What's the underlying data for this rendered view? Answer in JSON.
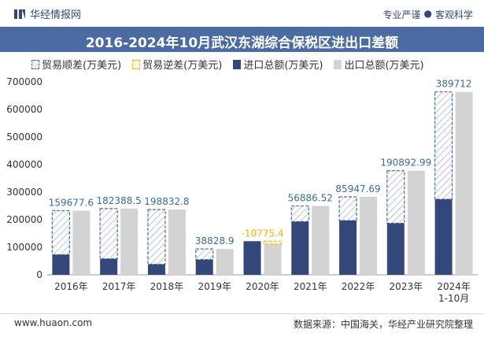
{
  "header": {
    "brand": "华经情报网",
    "slogan_left": "专业严谨",
    "slogan_sep": "●",
    "slogan_right": "客观科学"
  },
  "legend": {
    "surplus": "贸易顺差(万美元)",
    "deficit": "贸易逆差(万美元)",
    "import": "进口总额(万美元)",
    "export": "出口总额(万美元)"
  },
  "colors": {
    "import": "#34477a",
    "export": "#d3d3d3",
    "surplus_label": "#3b6b94",
    "deficit_label": "#f0b400",
    "title_bg": "#4a6ca3"
  },
  "footer": {
    "website": "www.huaon.com",
    "source": "数据来源：中国海关，华经产业研究院整理"
  },
  "chart_data": {
    "type": "bar",
    "title": "2016-2024年10月武汉东湖综合保税区进出口差额",
    "categories": [
      "2016年",
      "2017年",
      "2018年",
      "2019年",
      "2020年",
      "2021年",
      "2022年",
      "2023年",
      "2024年\n1-10月"
    ],
    "series": [
      {
        "name": "进口总额(万美元)",
        "values": [
          73000,
          58000,
          38000,
          55000,
          122000,
          193000,
          197000,
          187000,
          274000
        ]
      },
      {
        "name": "出口总额(万美元)",
        "values": [
          232677.6,
          240388.5,
          236832.8,
          93828.9,
          111224.6,
          249886.52,
          282947.69,
          377892.99,
          663712
        ]
      }
    ],
    "balance": [
      159677.6,
      182388.5,
      198832.8,
      38828.9,
      -10775.4,
      56886.52,
      85947.69,
      190892.99,
      389712
    ],
    "balance_labels": [
      "159677.6",
      "182388.5",
      "198832.8",
      "38828.9",
      "-10775.4",
      "56886.52",
      "85947.69",
      "190892.99",
      "389712"
    ],
    "y_ticks": [
      "0",
      "100000",
      "200000",
      "300000",
      "400000",
      "500000",
      "600000",
      "700000"
    ],
    "ylim": [
      0,
      700000
    ],
    "xlabel": "",
    "ylabel": ""
  }
}
